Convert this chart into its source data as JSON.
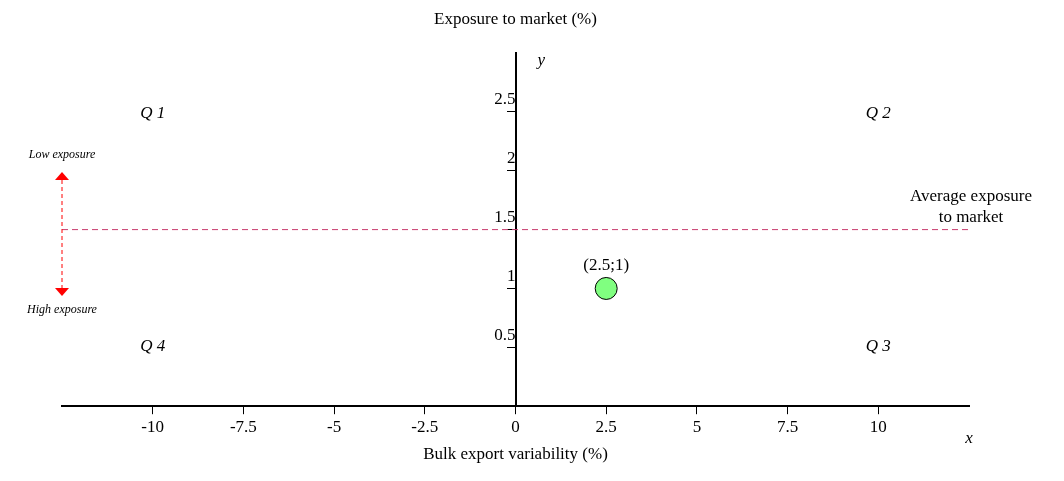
{
  "chart_data": {
    "type": "scatter",
    "ylabel": "Exposure to market (%)",
    "xlabel": "Bulk export variability (%)",
    "series": [
      {
        "color": "#80ff80",
        "x": [
          2.5
        ],
        "values": [
          1
        ],
        "value_labels": [
          "(2.5;1)"
        ]
      }
    ],
    "marker": "circle",
    "xlim": [
      -12.5,
      12.5
    ],
    "xticks": [
      -10,
      -7.5,
      -5,
      -2.5,
      0,
      2.5,
      5,
      7.5,
      10
    ],
    "ylim": [
      0,
      3
    ],
    "yticks": [
      0.5,
      1,
      1.5,
      2,
      2.5
    ],
    "grid": false,
    "legend": false,
    "ref_lines": [
      {
        "axis": "y",
        "value": 1.5,
        "label": "Average exposure to market",
        "color": "#c83c6e",
        "line_style": "dashed"
      }
    ],
    "annotations": [
      "Q 1",
      "Q 2",
      "Q 3",
      "Q 4",
      "Low exposure",
      "High exposure",
      "y",
      "x"
    ]
  }
}
